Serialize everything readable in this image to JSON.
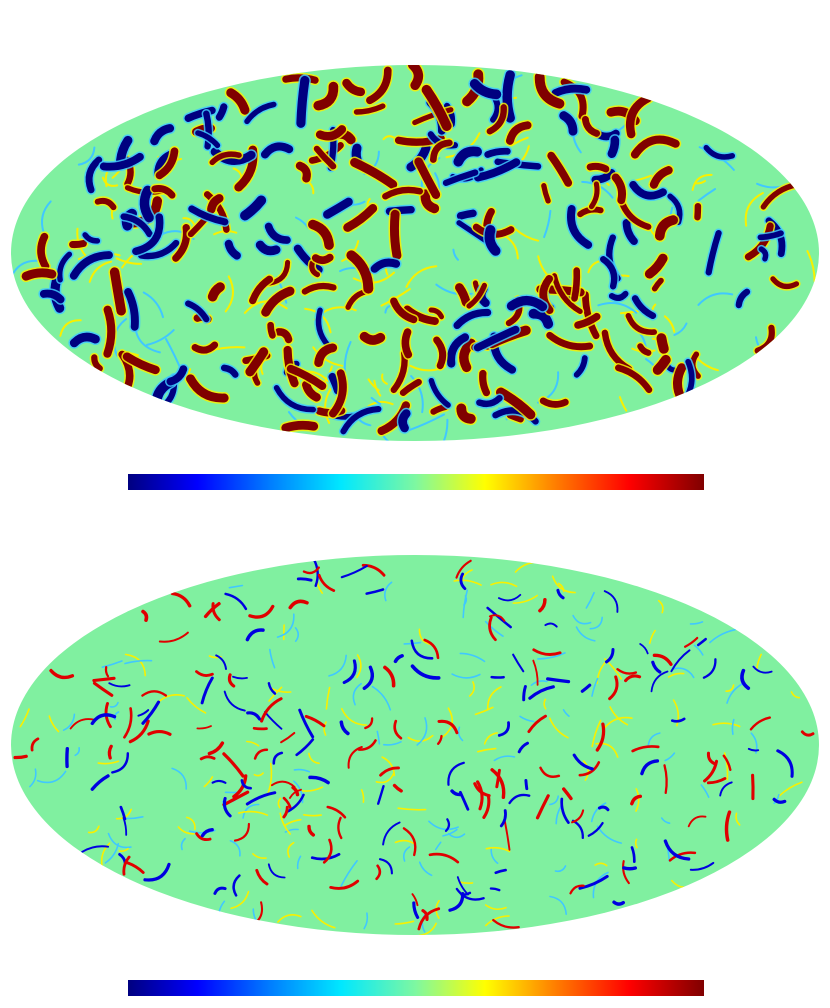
{
  "top_map": {
    "title": "",
    "colorbar_min_label": "",
    "colorbar_max_label": "",
    "colormap": "jet",
    "projection": "mollweide"
  },
  "bottom_map": {
    "title": "",
    "colorbar_min_label": "",
    "colorbar_max_label": "",
    "colormap": "jet",
    "projection": "mollweide"
  },
  "colors": {
    "background_field": "#80f0a0",
    "dark_blue": "#000080",
    "blue": "#0000e0",
    "cyan": "#40c8ff",
    "yellow": "#f8f000",
    "orange": "#ff8000",
    "red": "#e00000",
    "dark_red": "#800000"
  }
}
